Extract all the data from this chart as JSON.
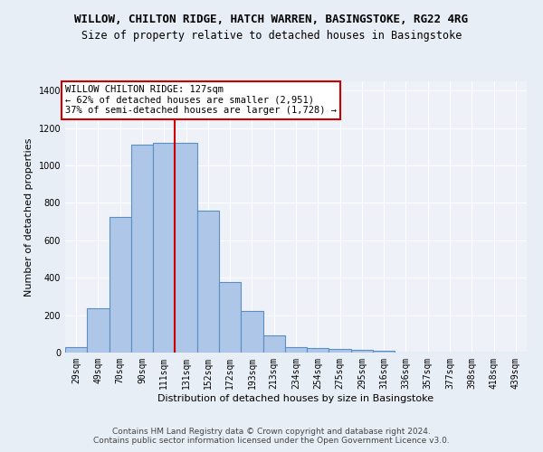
{
  "title_line1": "WILLOW, CHILTON RIDGE, HATCH WARREN, BASINGSTOKE, RG22 4RG",
  "title_line2": "Size of property relative to detached houses in Basingstoke",
  "xlabel": "Distribution of detached houses by size in Basingstoke",
  "ylabel": "Number of detached properties",
  "categories": [
    "29sqm",
    "49sqm",
    "70sqm",
    "90sqm",
    "111sqm",
    "131sqm",
    "152sqm",
    "172sqm",
    "193sqm",
    "213sqm",
    "234sqm",
    "254sqm",
    "275sqm",
    "295sqm",
    "316sqm",
    "336sqm",
    "357sqm",
    "377sqm",
    "398sqm",
    "418sqm",
    "439sqm"
  ],
  "values": [
    30,
    235,
    725,
    1110,
    1120,
    1120,
    760,
    375,
    220,
    90,
    30,
    25,
    20,
    15,
    10,
    0,
    0,
    0,
    0,
    0,
    0
  ],
  "bar_color": "#aec6e8",
  "bar_edge_color": "#5a8fc2",
  "vline_color": "#cc0000",
  "annotation_text": "WILLOW CHILTON RIDGE: 127sqm\n← 62% of detached houses are smaller (2,951)\n37% of semi-detached houses are larger (1,728) →",
  "annotation_box_color": "#ffffff",
  "annotation_box_edge_color": "#cc0000",
  "ylim": [
    0,
    1450
  ],
  "yticks": [
    0,
    200,
    400,
    600,
    800,
    1000,
    1200,
    1400
  ],
  "bg_color": "#e8eef5",
  "plot_bg_color": "#eef2f8",
  "footer_line1": "Contains HM Land Registry data © Crown copyright and database right 2024.",
  "footer_line2": "Contains public sector information licensed under the Open Government Licence v3.0.",
  "title_fontsize": 9,
  "subtitle_fontsize": 8.5,
  "axis_label_fontsize": 8,
  "tick_fontsize": 7,
  "annotation_fontsize": 7.5,
  "footer_fontsize": 6.5
}
